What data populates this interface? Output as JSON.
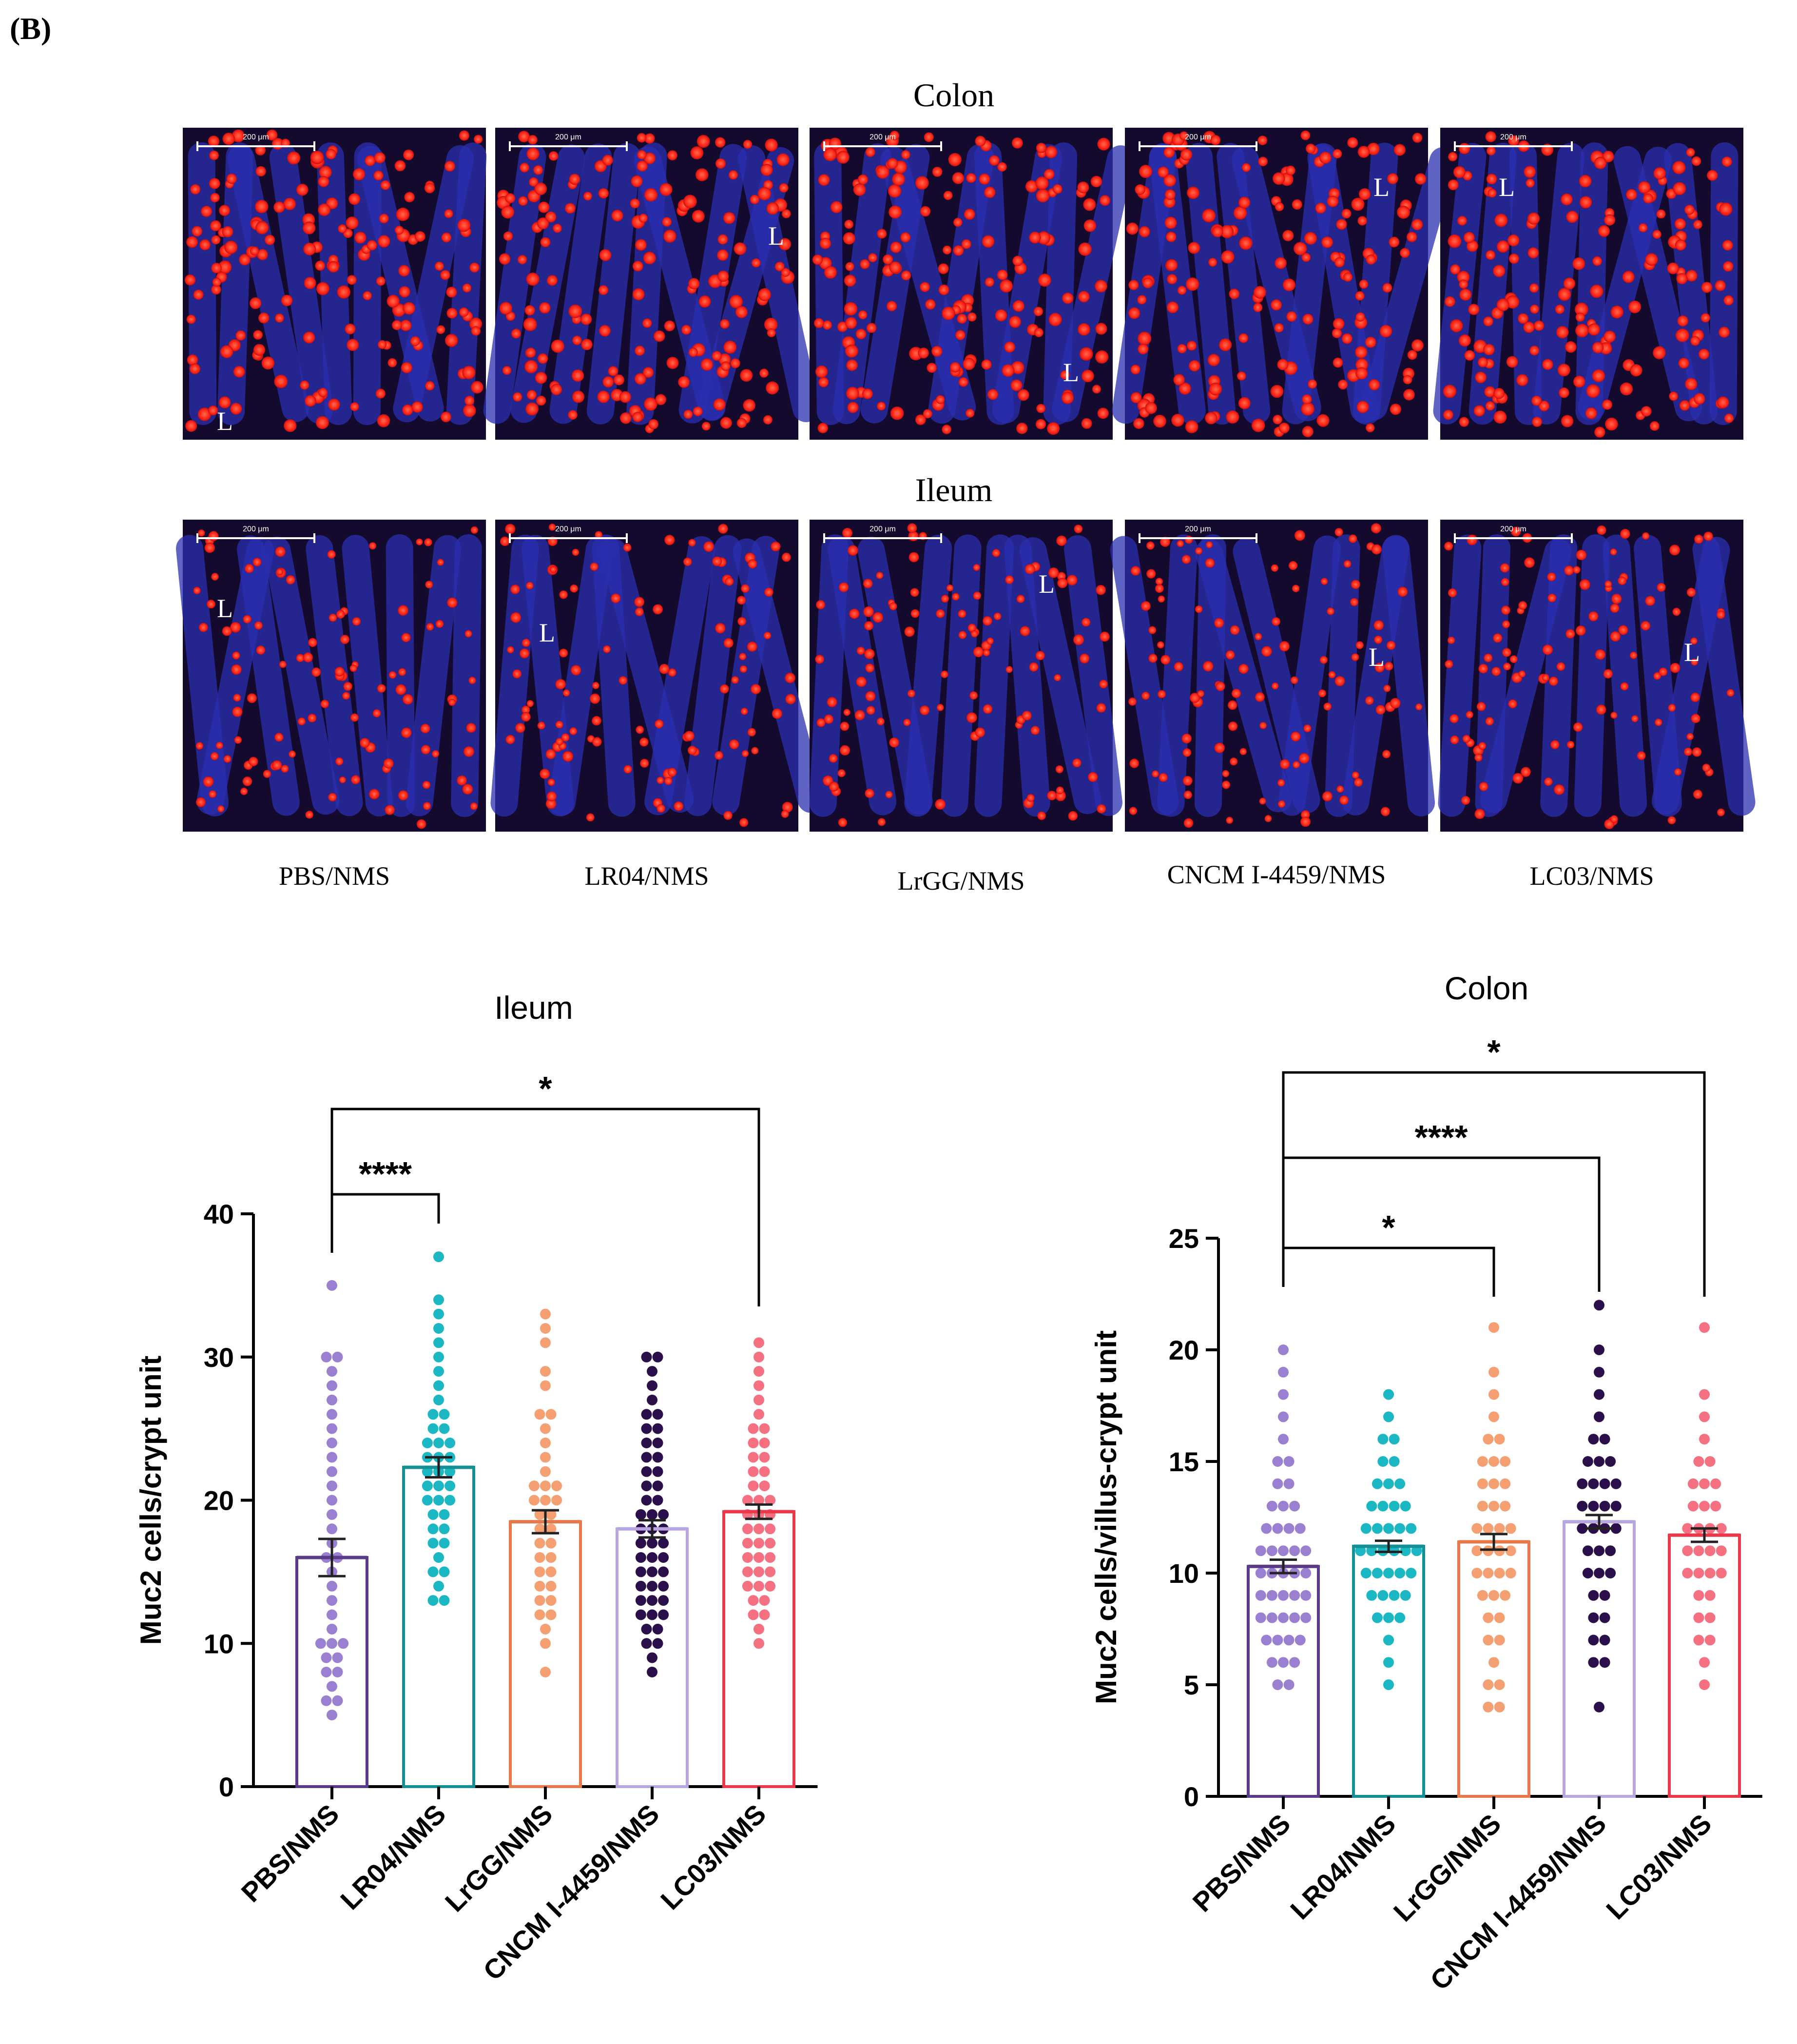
{
  "panel_label": "(B)",
  "micrographs": {
    "row_titles": [
      "Colon",
      "Ileum"
    ],
    "group_labels": [
      "PBS/NMS",
      "LR04/NMS",
      "LrGG/NMS",
      "CNCM I-4459/NMS",
      "LC03/NMS"
    ],
    "scale_bar_text": "200 μm",
    "lumen_marker": "L",
    "colors": {
      "nuclei": "#2a2fb0",
      "muc2": "#ff2418",
      "background": "#140a2e"
    }
  },
  "chart_data": [
    {
      "type": "bar",
      "title": "Ileum",
      "ylabel": "Muc2 cells/crypt unit",
      "categories": [
        "PBS/NMS",
        "LR04/NMS",
        "LrGG/NMS",
        "CNCM I-4459/NMS",
        "LC03/NMS"
      ],
      "values": [
        16.0,
        22.3,
        18.5,
        18.0,
        19.2
      ],
      "sem": [
        1.3,
        0.7,
        0.8,
        0.6,
        0.5
      ],
      "ylim": [
        0,
        40
      ],
      "yticks": [
        0,
        10,
        20,
        30,
        40
      ],
      "colors": [
        "#9b7fd1",
        "#1bb8c4",
        "#f5a072",
        "#2a0f4a",
        "#f57080"
      ],
      "outline_colors": [
        "#5b3a8a",
        "#138f96",
        "#e8774a",
        "#b8a6e0",
        "#e8384a"
      ],
      "points": [
        [
          5,
          6,
          6,
          7,
          8,
          8,
          9,
          9,
          10,
          10,
          10,
          11,
          12,
          13,
          14,
          15,
          16,
          16,
          17,
          18,
          19,
          20,
          21,
          22,
          23,
          24,
          25,
          26,
          27,
          28,
          29,
          30,
          30,
          35
        ],
        [
          13,
          13,
          14,
          15,
          15,
          16,
          17,
          17,
          18,
          18,
          19,
          19,
          20,
          20,
          20,
          21,
          21,
          21,
          22,
          22,
          22,
          23,
          23,
          23,
          24,
          24,
          24,
          25,
          25,
          26,
          26,
          27,
          28,
          29,
          30,
          31,
          32,
          33,
          34,
          37
        ],
        [
          8,
          10,
          11,
          12,
          12,
          13,
          13,
          14,
          14,
          15,
          15,
          16,
          16,
          17,
          17,
          18,
          18,
          19,
          19,
          20,
          20,
          20,
          21,
          21,
          21,
          22,
          23,
          24,
          25,
          26,
          26,
          28,
          29,
          31,
          32,
          33
        ],
        [
          8,
          9,
          10,
          10,
          11,
          11,
          12,
          12,
          12,
          13,
          13,
          13,
          14,
          14,
          14,
          15,
          15,
          15,
          16,
          16,
          16,
          17,
          17,
          17,
          18,
          18,
          18,
          19,
          19,
          19,
          20,
          20,
          21,
          21,
          22,
          22,
          23,
          23,
          24,
          24,
          25,
          25,
          26,
          26,
          27,
          28,
          29,
          30,
          30
        ],
        [
          10,
          11,
          12,
          12,
          13,
          13,
          14,
          14,
          14,
          15,
          15,
          15,
          16,
          16,
          16,
          17,
          17,
          17,
          18,
          18,
          18,
          19,
          19,
          19,
          20,
          20,
          20,
          21,
          21,
          22,
          22,
          23,
          23,
          24,
          24,
          25,
          25,
          26,
          27,
          28,
          29,
          30,
          31
        ]
      ],
      "significance": [
        {
          "from": 0,
          "to": 1,
          "label": "****"
        },
        {
          "from": 0,
          "to": 4,
          "label": "*"
        }
      ]
    },
    {
      "type": "bar",
      "title": "Colon",
      "ylabel": "Muc2 cells/villus-crypt unit",
      "categories": [
        "PBS/NMS",
        "LR04/NMS",
        "LrGG/NMS",
        "CNCM I-4459/NMS",
        "LC03/NMS"
      ],
      "values": [
        10.3,
        11.2,
        11.4,
        12.3,
        11.7
      ],
      "sem": [
        0.3,
        0.25,
        0.35,
        0.3,
        0.3
      ],
      "ylim": [
        0,
        25
      ],
      "yticks": [
        0,
        5,
        10,
        15,
        20,
        25
      ],
      "colors": [
        "#9b7fd1",
        "#1bb8c4",
        "#f5a072",
        "#2a0f4a",
        "#f57080"
      ],
      "outline_colors": [
        "#5b3a8a",
        "#138f96",
        "#e8774a",
        "#b8a6e0",
        "#e8384a"
      ],
      "points": [
        [
          5,
          5,
          6,
          6,
          6,
          7,
          7,
          7,
          7,
          8,
          8,
          8,
          8,
          8,
          9,
          9,
          9,
          9,
          9,
          10,
          10,
          10,
          10,
          10,
          11,
          11,
          11,
          11,
          11,
          12,
          12,
          12,
          12,
          13,
          13,
          13,
          14,
          14,
          15,
          15,
          16,
          17,
          18,
          19,
          20
        ],
        [
          5,
          6,
          7,
          8,
          8,
          8,
          9,
          9,
          9,
          9,
          10,
          10,
          10,
          10,
          10,
          11,
          11,
          11,
          11,
          11,
          11,
          12,
          12,
          12,
          12,
          12,
          13,
          13,
          13,
          13,
          14,
          14,
          14,
          15,
          15,
          16,
          16,
          17,
          18
        ],
        [
          4,
          4,
          5,
          5,
          6,
          7,
          7,
          8,
          8,
          9,
          9,
          9,
          10,
          10,
          10,
          10,
          11,
          11,
          11,
          11,
          12,
          12,
          12,
          12,
          13,
          13,
          13,
          14,
          14,
          14,
          15,
          15,
          15,
          16,
          16,
          17,
          18,
          19,
          21
        ],
        [
          4,
          6,
          6,
          7,
          7,
          8,
          8,
          9,
          9,
          10,
          10,
          10,
          11,
          11,
          11,
          12,
          12,
          12,
          12,
          13,
          13,
          13,
          13,
          14,
          14,
          14,
          14,
          15,
          15,
          15,
          16,
          16,
          17,
          18,
          19,
          20,
          22
        ],
        [
          5,
          6,
          7,
          7,
          8,
          8,
          9,
          9,
          10,
          10,
          10,
          10,
          11,
          11,
          11,
          11,
          12,
          12,
          12,
          12,
          13,
          13,
          13,
          14,
          14,
          14,
          15,
          15,
          16,
          17,
          18,
          21
        ]
      ],
      "significance": [
        {
          "from": 0,
          "to": 2,
          "label": "*"
        },
        {
          "from": 0,
          "to": 3,
          "label": "****"
        },
        {
          "from": 0,
          "to": 4,
          "label": "*"
        }
      ]
    }
  ]
}
